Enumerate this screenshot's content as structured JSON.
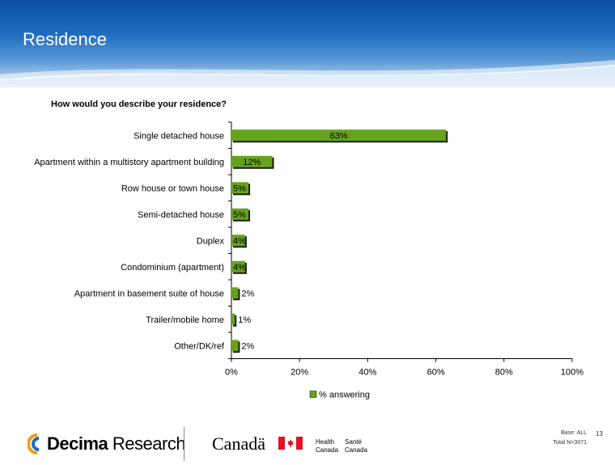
{
  "page": {
    "title": "Residence",
    "question": "How would you describe your residence?",
    "page_number": "13",
    "base_line1": "Base: ALL",
    "base_line2": "Total N=3071"
  },
  "footer": {
    "decima_bold": "Decima",
    "decima_light": " Research",
    "canada_wordmark": "Canadä",
    "health_en_1": "Health",
    "health_en_2": "Canada",
    "health_fr_1": "Santé",
    "health_fr_2": "Canada"
  },
  "colors": {
    "bar": "#66a31c",
    "shadow": "#1a1a1a",
    "header": "#1e6cc0"
  },
  "chart_data": {
    "type": "bar",
    "orientation": "horizontal",
    "categories": [
      "Single detached house",
      "Apartment within a multistory apartment building",
      "Row house or town house",
      "Semi-detached house",
      "Duplex",
      "Condominium (apartment)",
      "Apartment in basement suite of house",
      "Trailer/mobile home",
      "Other/DK/ref"
    ],
    "series": [
      {
        "name": "% answering",
        "values": [
          63,
          12,
          5,
          5,
          4,
          4,
          2,
          1,
          2
        ]
      }
    ],
    "data_labels": [
      "63%",
      "12%",
      "5%",
      "5%",
      "4%",
      "4%",
      "2%",
      "1%",
      "2%"
    ],
    "xlim": [
      0,
      100
    ],
    "x_ticks": [
      "0%",
      "20%",
      "40%",
      "60%",
      "80%",
      "100%"
    ],
    "legend_position": "bottom"
  }
}
